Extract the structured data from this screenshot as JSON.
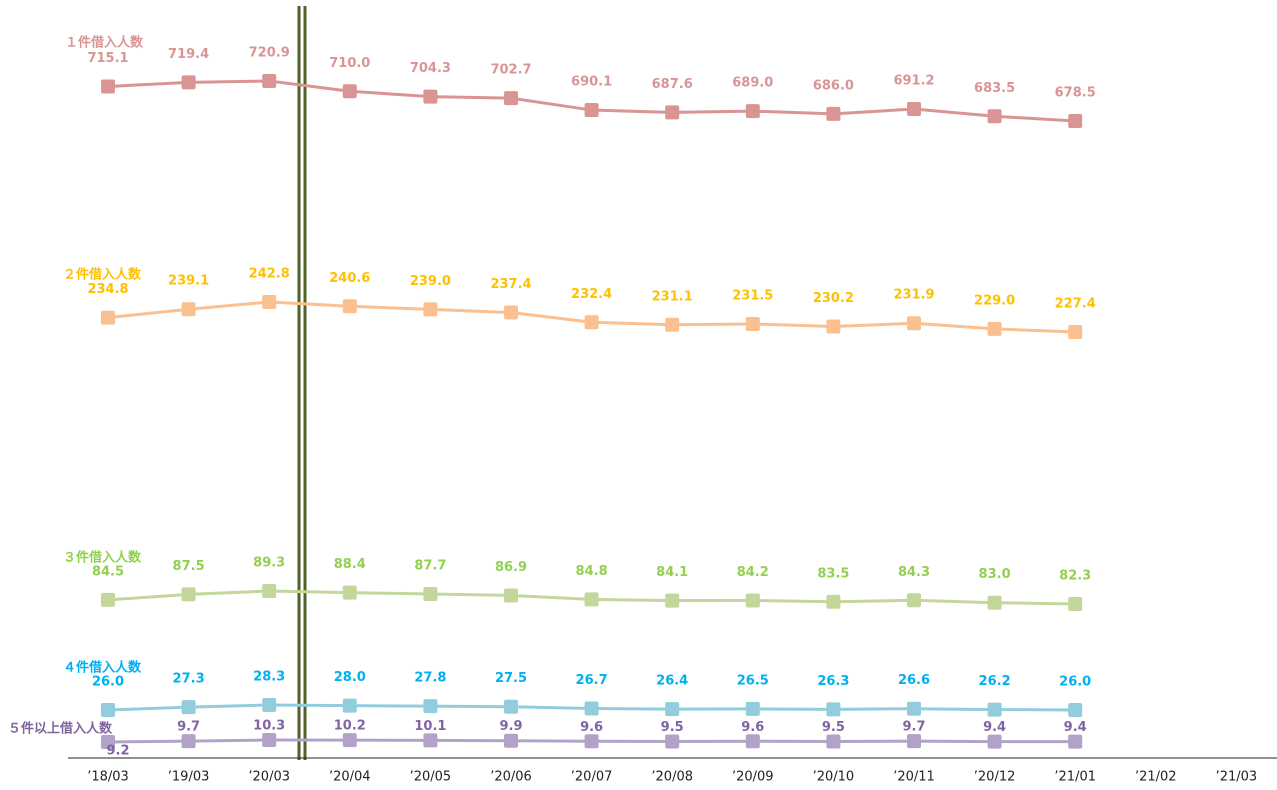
{
  "chart_data": {
    "type": "line",
    "categories": [
      "’18/03",
      "’19/03",
      "’20/03",
      "’20/04",
      "’20/05",
      "’20/06",
      "’20/07",
      "’20/08",
      "’20/09",
      "’20/10",
      "’20/11",
      "’20/12",
      "’21/01",
      "’21/02",
      "’21/03"
    ],
    "series": [
      {
        "name": "１件借入人数",
        "color": "#d99594",
        "label_color": "#d99594",
        "values": [
          715.1,
          719.4,
          720.9,
          710.0,
          704.3,
          702.7,
          690.1,
          687.6,
          689.0,
          686.0,
          691.2,
          683.5,
          678.5,
          null,
          null
        ],
        "value_labels": [
          "715.1",
          "719.4",
          "720.9",
          "710.0",
          "704.3",
          "702.7",
          "690.1",
          "687.6",
          "689.0",
          "686.0",
          "691.2",
          "683.5",
          "678.5",
          null,
          null
        ]
      },
      {
        "name": "２件借入人数",
        "color": "#fac090",
        "label_color": "#ffc000",
        "values": [
          234.8,
          239.1,
          242.8,
          240.6,
          239.0,
          237.4,
          232.4,
          231.1,
          231.5,
          230.2,
          231.9,
          229.0,
          227.4,
          null,
          null
        ],
        "value_labels": [
          "234.8",
          "239.1",
          "242.8",
          "240.6",
          "239.0",
          "237.4",
          "232.4",
          "231.1",
          "231.5",
          "230.2",
          "231.9",
          "229.0",
          "227.4",
          null,
          null
        ]
      },
      {
        "name": "３件借入人数",
        "color": "#c3d69b",
        "label_color": "#92d050",
        "values": [
          84.5,
          87.5,
          89.3,
          88.4,
          87.7,
          86.9,
          84.8,
          84.1,
          84.2,
          83.5,
          84.3,
          83.0,
          82.3,
          null,
          null
        ],
        "value_labels": [
          "84.5",
          "87.5",
          "89.3",
          "88.4",
          "87.7",
          "86.9",
          "84.8",
          "84.1",
          "84.2",
          "83.5",
          "84.3",
          "83.0",
          "82.3",
          null,
          null
        ]
      },
      {
        "name": "４件借入人数",
        "color": "#93cddd",
        "label_color": "#00b0f0",
        "values": [
          26.0,
          27.3,
          28.3,
          28.0,
          27.8,
          27.5,
          26.7,
          26.4,
          26.5,
          26.3,
          26.6,
          26.2,
          26.0,
          null,
          null
        ],
        "value_labels": [
          "26.0",
          "27.3",
          "28.3",
          "28.0",
          "27.8",
          "27.5",
          "26.7",
          "26.4",
          "26.5",
          "26.3",
          "26.6",
          "26.2",
          "26.0",
          null,
          null
        ]
      },
      {
        "name": "５件以上借入人数",
        "color": "#b3a2c7",
        "label_color": "#8064a2",
        "values": [
          9.2,
          9.7,
          10.3,
          10.2,
          10.1,
          9.9,
          9.6,
          9.5,
          9.6,
          9.5,
          9.7,
          9.4,
          9.4,
          null,
          null
        ]
      }
    ]
  }
}
